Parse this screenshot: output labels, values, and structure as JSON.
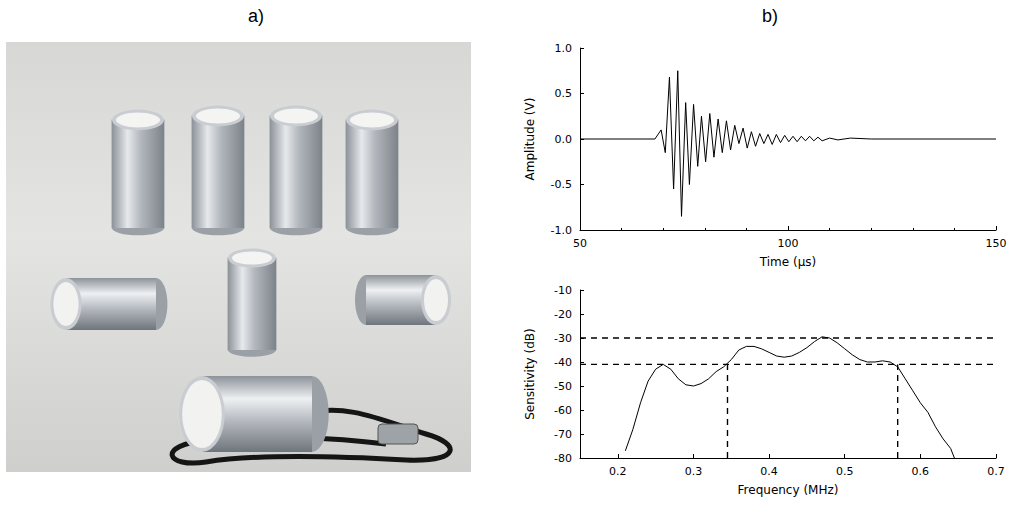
{
  "panels": [
    "a)",
    "b)"
  ],
  "chart_data": [
    {
      "type": "line",
      "x_label": "Time (µs)",
      "y_label": "Amplitude (V)",
      "x": [
        50,
        68,
        69.5,
        70.5,
        71.5,
        72.5,
        73.5,
        74.4,
        75.4,
        76.3,
        77.3,
        78.3,
        79.2,
        80.2,
        81.2,
        82.2,
        83.2,
        84.2,
        85.2,
        86.2,
        87.2,
        88.2,
        89.2,
        90.2,
        91.2,
        92.2,
        93.2,
        94.2,
        95.2,
        96.2,
        97.2,
        98.2,
        99.2,
        100.2,
        101.2,
        102.2,
        103.2,
        104.2,
        105.2,
        106.2,
        107.2,
        108.2,
        110,
        112,
        115,
        120,
        150
      ],
      "values": [
        0,
        0,
        0.1,
        -0.15,
        0.68,
        -0.55,
        0.75,
        -0.85,
        0.4,
        -0.5,
        0.38,
        -0.3,
        0.25,
        -0.25,
        0.28,
        -0.2,
        0.22,
        -0.15,
        0.2,
        -0.12,
        0.15,
        -0.05,
        0.12,
        -0.1,
        0.08,
        -0.08,
        0.06,
        -0.05,
        0.05,
        -0.06,
        0.05,
        -0.04,
        0.04,
        -0.03,
        0.03,
        -0.03,
        0.03,
        -0.02,
        0.03,
        -0.02,
        0.02,
        -0.02,
        0.01,
        -0.01,
        0.01,
        0,
        0
      ],
      "color": "#000000",
      "xlim": [
        50,
        150
      ],
      "xticks": [
        50,
        100,
        150
      ],
      "ylim": [
        -1,
        1
      ],
      "yticks": [
        {
          "value": -1,
          "label": "-1.0"
        },
        {
          "value": -0.5,
          "label": "-0.5"
        },
        {
          "value": 0,
          "label": "0.0"
        },
        {
          "value": 0.5,
          "label": "0.5"
        },
        {
          "value": 1,
          "label": "1.0"
        }
      ],
      "grid": false
    },
    {
      "type": "line",
      "x_label": "Frequency (MHz)",
      "y_label": "Sensitivity (dB)",
      "x": [
        0.21,
        0.22,
        0.23,
        0.24,
        0.25,
        0.26,
        0.27,
        0.28,
        0.29,
        0.3,
        0.31,
        0.32,
        0.33,
        0.34,
        0.35,
        0.36,
        0.37,
        0.38,
        0.39,
        0.4,
        0.41,
        0.42,
        0.43,
        0.44,
        0.45,
        0.46,
        0.47,
        0.48,
        0.49,
        0.5,
        0.51,
        0.52,
        0.53,
        0.54,
        0.55,
        0.56,
        0.57,
        0.58,
        0.59,
        0.6,
        0.61,
        0.62,
        0.63,
        0.64,
        0.645
      ],
      "values": [
        -77,
        -68,
        -57,
        -48,
        -43,
        -41,
        -43,
        -47,
        -49.5,
        -50,
        -49,
        -47,
        -44,
        -42,
        -39,
        -35,
        -33.5,
        -33.5,
        -34.5,
        -36,
        -37.5,
        -38,
        -37.5,
        -36,
        -34,
        -31.5,
        -29.5,
        -30,
        -32,
        -34.5,
        -37,
        -39,
        -40,
        -40,
        -39.5,
        -40,
        -42,
        -47,
        -52,
        -57,
        -61,
        -67,
        -72,
        -76,
        -80
      ],
      "color": "#000000",
      "xlim": [
        0.15,
        0.7
      ],
      "xticks": [
        0.2,
        0.3,
        0.4,
        0.5,
        0.6,
        0.7
      ],
      "ylim": [
        -80,
        -10
      ],
      "yticks": [
        -80,
        -70,
        -60,
        -50,
        -40,
        -30,
        -20,
        -10
      ],
      "hlines": [
        -30,
        -41
      ],
      "vlines": [
        {
          "x": 0.345,
          "y": -41
        },
        {
          "x": 0.57,
          "y": -41
        }
      ],
      "grid": false
    }
  ]
}
